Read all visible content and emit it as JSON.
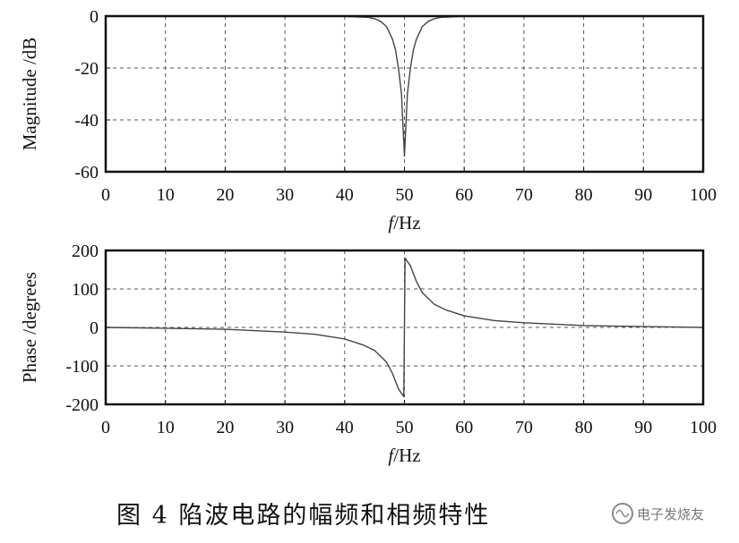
{
  "chart_data": [
    {
      "type": "line",
      "title": "",
      "xlabel_italic": "f",
      "xlabel_unit": "/Hz",
      "ylabel": "Magnitude /dB",
      "xlim": [
        0,
        100
      ],
      "ylim": [
        -60,
        0
      ],
      "xticks": [
        0,
        10,
        20,
        30,
        40,
        50,
        60,
        70,
        80,
        90,
        100
      ],
      "yticks": [
        0,
        -20,
        -40,
        -60
      ],
      "ytick_labels": [
        "0",
        "-20",
        "-40",
        "-60"
      ],
      "grid": true,
      "series": [
        {
          "x": [
            0,
            10,
            20,
            30,
            40,
            44,
            45,
            46,
            47,
            48,
            48.5,
            49,
            49.5,
            50,
            50.5,
            51,
            51.5,
            52,
            53,
            54,
            55,
            56,
            60,
            70,
            80,
            90,
            100
          ],
          "y": [
            0,
            0,
            0,
            0,
            -0.1,
            -0.5,
            -1,
            -2,
            -4,
            -9,
            -13,
            -20,
            -30,
            -54,
            -30,
            -20,
            -13,
            -9,
            -4,
            -2,
            -1,
            -0.5,
            -0.1,
            0,
            0,
            0,
            0
          ]
        }
      ]
    },
    {
      "type": "line",
      "title": "",
      "xlabel_italic": "f",
      "xlabel_unit": "/Hz",
      "ylabel": "Phase /degrees",
      "xlim": [
        0,
        100
      ],
      "ylim": [
        -200,
        200
      ],
      "xticks": [
        0,
        10,
        20,
        30,
        40,
        50,
        60,
        70,
        80,
        90,
        100
      ],
      "yticks": [
        200,
        100,
        0,
        -100,
        -200
      ],
      "ytick_labels": [
        "200",
        "100",
        "0",
        "-100",
        "-200"
      ],
      "grid": true,
      "series": [
        {
          "x": [
            0,
            10,
            20,
            30,
            35,
            40,
            43,
            45,
            47,
            48,
            49,
            49.9,
            50,
            50.1,
            51,
            52,
            53,
            55,
            57,
            60,
            65,
            70,
            80,
            90,
            100
          ],
          "y": [
            0,
            -2,
            -5,
            -12,
            -18,
            -30,
            -45,
            -60,
            -90,
            -120,
            -160,
            -180,
            0,
            180,
            160,
            120,
            90,
            60,
            45,
            30,
            18,
            12,
            5,
            2,
            0
          ]
        }
      ]
    }
  ],
  "caption": "图 4   陷波电路的幅频和相频特性",
  "watermark": "电子发烧友",
  "colors": {
    "line": "#444444",
    "grid": "#555555",
    "frame": "#111111"
  }
}
